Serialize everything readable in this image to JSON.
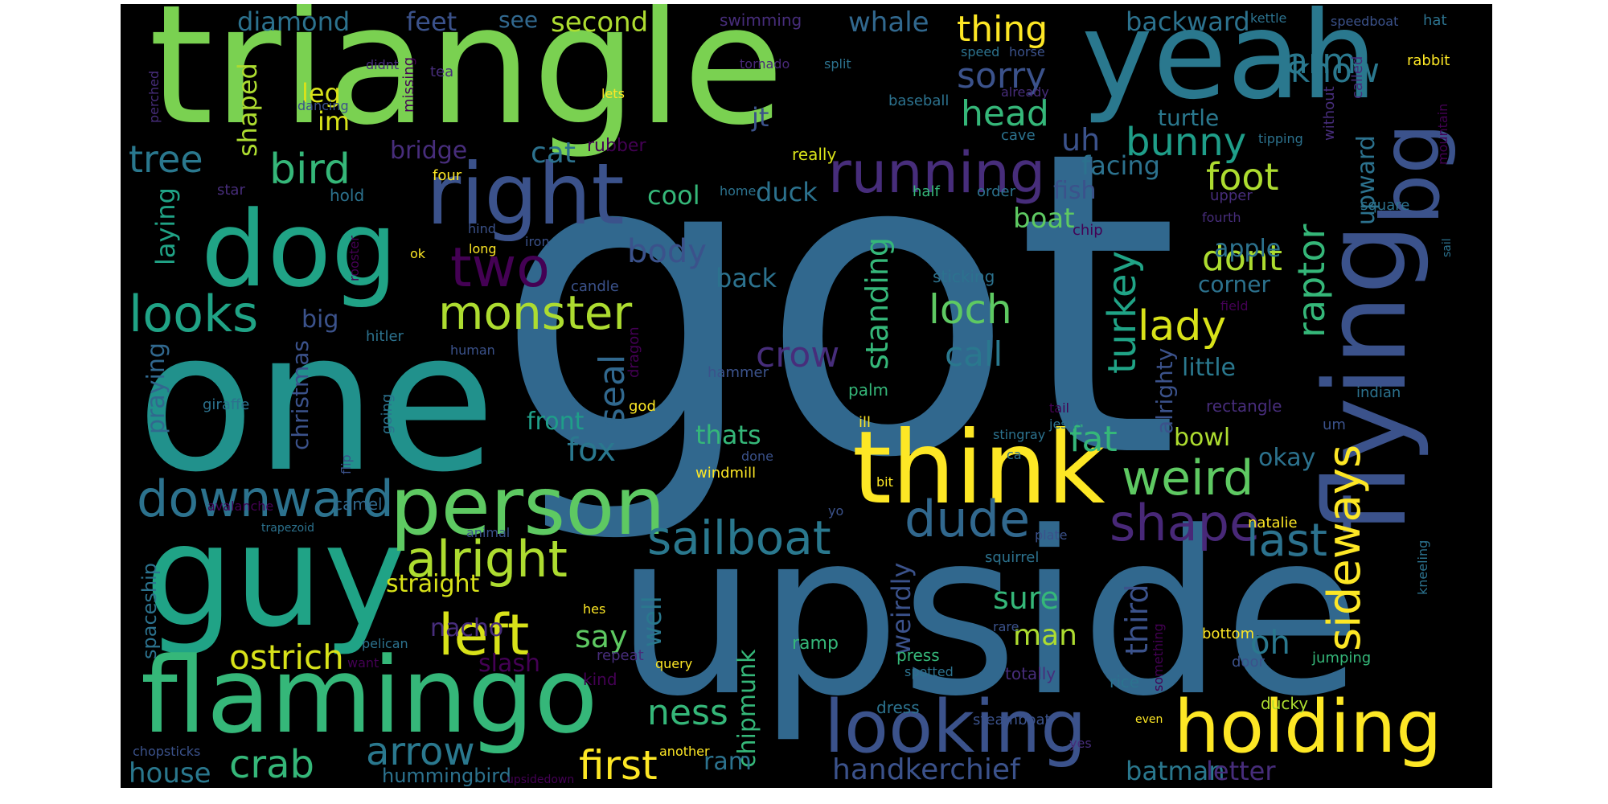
{
  "palette": {
    "background": "#000000",
    "dark_purple": "#440154",
    "purple": "#472d7b",
    "indigo": "#3b528b",
    "blue": "#2c728e",
    "teal": "#21918c",
    "green": "#28ae80",
    "light_green": "#5ec962",
    "lime": "#addc30",
    "yellow": "#fde725"
  },
  "words": [
    {
      "id": "got",
      "text": "got",
      "color": "#31688e"
    },
    {
      "id": "upside",
      "text": "upside",
      "color": "#31688e"
    },
    {
      "id": "one",
      "text": "one",
      "color": "#21918c"
    },
    {
      "id": "triangle",
      "text": "triangle",
      "color": "#7ad151"
    },
    {
      "id": "guy",
      "text": "guy",
      "color": "#20a386"
    },
    {
      "id": "flamingo",
      "text": "flamingo",
      "color": "#35b779"
    },
    {
      "id": "yeah",
      "text": "yeah",
      "color": "#2a788e"
    },
    {
      "id": "flying",
      "text": "flying",
      "color": "#3b528b"
    },
    {
      "id": "dog",
      "text": "dog",
      "color": "#20a386"
    },
    {
      "id": "think",
      "text": "think",
      "color": "#fde725"
    },
    {
      "id": "right",
      "text": "right",
      "color": "#3b528b"
    },
    {
      "id": "person",
      "text": "person",
      "color": "#5ec962"
    },
    {
      "id": "looking",
      "text": "looking",
      "color": "#3b528b"
    },
    {
      "id": "holding",
      "text": "holding",
      "color": "#fde725"
    },
    {
      "id": "big",
      "text": "bg",
      "color": "#3b528b"
    },
    {
      "id": "running",
      "text": "running",
      "color": "#472d7b"
    },
    {
      "id": "monster",
      "text": "monster",
      "color": "#addc30"
    },
    {
      "id": "downward",
      "text": "downward",
      "color": "#2c728e"
    },
    {
      "id": "looks",
      "text": "looks",
      "color": "#20a386"
    },
    {
      "id": "two",
      "text": "two",
      "color": "#440154"
    },
    {
      "id": "alright",
      "text": "alright",
      "color": "#addc30"
    },
    {
      "id": "left",
      "text": "left",
      "color": "#d8e219"
    },
    {
      "id": "sailboat",
      "text": "sailboat",
      "color": "#2a788e"
    },
    {
      "id": "dude",
      "text": "dude",
      "color": "#31688e"
    },
    {
      "id": "shape",
      "text": "shape",
      "color": "#482878"
    },
    {
      "id": "weird",
      "text": "weird",
      "color": "#5ec962"
    },
    {
      "id": "sideways",
      "text": "sideways",
      "color": "#fde725"
    },
    {
      "id": "last",
      "text": "last",
      "color": "#2c728e"
    },
    {
      "id": "bird",
      "text": "bird",
      "color": "#35b779"
    },
    {
      "id": "tree",
      "text": "tree",
      "color": "#2a788e"
    },
    {
      "id": "crab",
      "text": "crab",
      "color": "#35b779"
    },
    {
      "id": "arrow",
      "text": "arrow",
      "color": "#2a788e"
    },
    {
      "id": "first",
      "text": "first",
      "color": "#fde725"
    },
    {
      "id": "ness",
      "text": "ness",
      "color": "#35b779"
    },
    {
      "id": "ostrich",
      "text": "ostrich",
      "color": "#d8e219"
    },
    {
      "id": "loch",
      "text": "loch",
      "color": "#5ec962"
    },
    {
      "id": "lady",
      "text": "lady",
      "color": "#d8e219"
    },
    {
      "id": "bunny",
      "text": "bunny",
      "color": "#1f9e89"
    },
    {
      "id": "head",
      "text": "head",
      "color": "#35b779"
    },
    {
      "id": "sorry",
      "text": "sorry",
      "color": "#3b528b"
    },
    {
      "id": "thing",
      "text": "thing",
      "color": "#fde725"
    },
    {
      "id": "arm",
      "text": "arm",
      "color": "#2a788e"
    },
    {
      "id": "know",
      "text": "know",
      "color": "#2a788e"
    },
    {
      "id": "seal",
      "text": "seal",
      "color": "#31688e"
    },
    {
      "id": "turkey",
      "text": "turkey",
      "color": "#20a386"
    },
    {
      "id": "raptor",
      "text": "raptor",
      "color": "#35b779"
    },
    {
      "id": "foot",
      "text": "foot",
      "color": "#addc30"
    },
    {
      "id": "dont",
      "text": "dont",
      "color": "#addc30"
    },
    {
      "id": "fat",
      "text": "fat",
      "color": "#35b779"
    },
    {
      "id": "crow",
      "text": "crow",
      "color": "#472d7b"
    },
    {
      "id": "call",
      "text": "call",
      "color": "#2a788e"
    },
    {
      "id": "body",
      "text": "body",
      "color": "#3b528b"
    },
    {
      "id": "fox",
      "text": "fox",
      "color": "#2a788e"
    },
    {
      "id": "uh",
      "text": "uh",
      "color": "#3b528b"
    },
    {
      "id": "say",
      "text": "say",
      "color": "#5ec962"
    },
    {
      "id": "sure",
      "text": "sure",
      "color": "#35b779"
    },
    {
      "id": "man",
      "text": "man",
      "color": "#addc30"
    },
    {
      "id": "third",
      "text": "third",
      "color": "#3b528b"
    },
    {
      "id": "oh",
      "text": "oh",
      "color": "#2a788e"
    },
    {
      "id": "handkerchief",
      "text": "handkerchief",
      "color": "#3b528b"
    },
    {
      "id": "batman",
      "text": "batman",
      "color": "#2a788e"
    },
    {
      "id": "letter",
      "text": "letter",
      "color": "#472d7b"
    },
    {
      "id": "house",
      "text": "house",
      "color": "#2a788e"
    },
    {
      "id": "diamond",
      "text": "diamond",
      "color": "#2c728e"
    },
    {
      "id": "feet",
      "text": "feet",
      "color": "#3b528b"
    },
    {
      "id": "see",
      "text": "see",
      "color": "#31688e"
    },
    {
      "id": "second",
      "text": "second",
      "color": "#addc30"
    },
    {
      "id": "whale",
      "text": "whale",
      "color": "#31688e"
    },
    {
      "id": "backward",
      "text": "backward",
      "color": "#2c728e"
    },
    {
      "id": "leg",
      "text": "leg",
      "color": "#d8e219"
    },
    {
      "id": "im",
      "text": "im",
      "color": "#d8e219"
    },
    {
      "id": "jt",
      "text": "jt",
      "color": "#3b528b"
    },
    {
      "id": "turtle",
      "text": "turtle",
      "color": "#2a788e"
    },
    {
      "id": "facing",
      "text": "facing",
      "color": "#2c728e"
    },
    {
      "id": "cat",
      "text": "cat",
      "color": "#2c728e"
    },
    {
      "id": "bridge",
      "text": "bridge",
      "color": "#472d7b"
    },
    {
      "id": "cool",
      "text": "cool",
      "color": "#35b779"
    },
    {
      "id": "duck",
      "text": "duck",
      "color": "#2c728e"
    },
    {
      "id": "boat",
      "text": "boat",
      "color": "#5ec962"
    },
    {
      "id": "apple",
      "text": "apple",
      "color": "#2c728e"
    },
    {
      "id": "corner",
      "text": "corner",
      "color": "#2c728e"
    },
    {
      "id": "back",
      "text": "back",
      "color": "#2c728e"
    },
    {
      "id": "standing",
      "text": "standing",
      "color": "#35b779"
    },
    {
      "id": "fish",
      "text": "fish",
      "color": "#3b528b"
    },
    {
      "id": "upward",
      "text": "upward",
      "color": "#2c728e"
    },
    {
      "id": "shaped",
      "text": "shaped",
      "color": "#addc30"
    },
    {
      "id": "laying",
      "text": "laying",
      "color": "#20a386"
    },
    {
      "id": "praying",
      "text": "praying",
      "color": "#31688e"
    },
    {
      "id": "christmas",
      "text": "christmas",
      "color": "#3b528b"
    },
    {
      "id": "thats",
      "text": "thats",
      "color": "#35b779"
    },
    {
      "id": "front",
      "text": "front",
      "color": "#1f9e89"
    },
    {
      "id": "well",
      "text": "well",
      "color": "#2a788e"
    },
    {
      "id": "weirdly",
      "text": "weirdly",
      "color": "#3b528b"
    },
    {
      "id": "little",
      "text": "little",
      "color": "#2a788e"
    },
    {
      "id": "bowl",
      "text": "bowl",
      "color": "#addc30"
    },
    {
      "id": "okay",
      "text": "okay",
      "color": "#2c728e"
    },
    {
      "id": "alrighty",
      "text": "alrighty",
      "color": "#3b528b"
    },
    {
      "id": "straight",
      "text": "straight",
      "color": "#d8e219"
    },
    {
      "id": "nacho",
      "text": "nacho",
      "color": "#472d7b"
    },
    {
      "id": "slash",
      "text": "slash",
      "color": "#440154"
    },
    {
      "id": "chipmunk",
      "text": "chipmunk",
      "color": "#35b779"
    },
    {
      "id": "ram",
      "text": "ram",
      "color": "#2c728e"
    },
    {
      "id": "hummingbird",
      "text": "hummingbird",
      "color": "#2c728e"
    },
    {
      "id": "spaceship",
      "text": "spaceship",
      "color": "#2c728e"
    },
    {
      "id": "big2",
      "text": "big",
      "color": "#3b528b"
    },
    {
      "id": "swimming",
      "text": "swimming",
      "color": "#472d7b"
    },
    {
      "id": "kettle",
      "text": "kettle",
      "color": "#2c728e"
    },
    {
      "id": "speedboat",
      "text": "speedboat",
      "color": "#3b528b"
    },
    {
      "id": "hat",
      "text": "hat",
      "color": "#2c728e"
    },
    {
      "id": "tornado",
      "text": "tornado",
      "color": "#482878"
    },
    {
      "id": "split",
      "text": "split",
      "color": "#2c728e"
    },
    {
      "id": "speed",
      "text": "speed",
      "color": "#2c728e"
    },
    {
      "id": "horse",
      "text": "horse",
      "color": "#3b528b"
    },
    {
      "id": "without",
      "text": "without",
      "color": "#472d7b"
    },
    {
      "id": "called",
      "text": "called",
      "color": "#472d7b"
    },
    {
      "id": "rabbit",
      "text": "rabbit",
      "color": "#fde725"
    },
    {
      "id": "mountain",
      "text": "mountain",
      "color": "#440154"
    },
    {
      "id": "already",
      "text": "already",
      "color": "#472d7b"
    },
    {
      "id": "baseball",
      "text": "baseball",
      "color": "#2c728e"
    },
    {
      "id": "didnt",
      "text": "didnt",
      "color": "#472d7b"
    },
    {
      "id": "tea",
      "text": "tea",
      "color": "#472d7b"
    },
    {
      "id": "missing",
      "text": "missing",
      "color": "#440154"
    },
    {
      "id": "lets",
      "text": "lets",
      "color": "#fde725"
    },
    {
      "id": "perched",
      "text": "perched",
      "color": "#472d7b"
    },
    {
      "id": "tipping",
      "text": "tipping",
      "color": "#2c728e"
    },
    {
      "id": "cave",
      "text": "cave",
      "color": "#2c728e"
    },
    {
      "id": "rubber",
      "text": "rubber",
      "color": "#440154"
    },
    {
      "id": "really",
      "text": "really",
      "color": "#d8e219"
    },
    {
      "id": "star",
      "text": "star",
      "color": "#472d7b"
    },
    {
      "id": "dancing",
      "text": "dancing",
      "color": "#3b528b"
    },
    {
      "id": "hold",
      "text": "hold",
      "color": "#2c728e"
    },
    {
      "id": "four",
      "text": "four",
      "color": "#fde725"
    },
    {
      "id": "home",
      "text": "home",
      "color": "#2c728e"
    },
    {
      "id": "half",
      "text": "half",
      "color": "#35b779"
    },
    {
      "id": "order",
      "text": "order",
      "color": "#2c728e"
    },
    {
      "id": "upper",
      "text": "upper",
      "color": "#472d7b"
    },
    {
      "id": "square",
      "text": "square",
      "color": "#2c728e"
    },
    {
      "id": "fourth",
      "text": "fourth",
      "color": "#472d7b"
    },
    {
      "id": "chip",
      "text": "chip",
      "color": "#440154"
    },
    {
      "id": "sail",
      "text": "sail",
      "color": "#2c728e"
    },
    {
      "id": "hind",
      "text": "hind",
      "color": "#3b528b"
    },
    {
      "id": "ok",
      "text": "ok",
      "color": "#fde725"
    },
    {
      "id": "iron",
      "text": "iron",
      "color": "#3b528b"
    },
    {
      "id": "long",
      "text": "long",
      "color": "#fde725"
    },
    {
      "id": "rooster",
      "text": "rooster",
      "color": "#440154"
    },
    {
      "id": "candle",
      "text": "candle",
      "color": "#3b528b"
    },
    {
      "id": "sticking",
      "text": "sticking",
      "color": "#2c728e"
    },
    {
      "id": "field",
      "text": "field",
      "color": "#440154"
    },
    {
      "id": "dragon",
      "text": "dragon",
      "color": "#440154"
    },
    {
      "id": "hitler",
      "text": "hitler",
      "color": "#2c728e"
    },
    {
      "id": "human",
      "text": "human",
      "color": "#3b528b"
    },
    {
      "id": "hammer",
      "text": "hammer",
      "color": "#3b528b"
    },
    {
      "id": "god",
      "text": "god",
      "color": "#fde725"
    },
    {
      "id": "palm",
      "text": "palm",
      "color": "#35b779"
    },
    {
      "id": "rectangle",
      "text": "rectangle",
      "color": "#472d7b"
    },
    {
      "id": "indian",
      "text": "indian",
      "color": "#2c728e"
    },
    {
      "id": "giraffe",
      "text": "giraffe",
      "color": "#2c728e"
    },
    {
      "id": "going",
      "text": "going",
      "color": "#2c728e"
    },
    {
      "id": "tail",
      "text": "tail",
      "color": "#440154"
    },
    {
      "id": "um",
      "text": "um",
      "color": "#3b528b"
    },
    {
      "id": "ill",
      "text": "ill",
      "color": "#fde725"
    },
    {
      "id": "stingray",
      "text": "stingray",
      "color": "#2c728e"
    },
    {
      "id": "jesus",
      "text": "jesus",
      "color": "#2c728e"
    },
    {
      "id": "flip",
      "text": "flip",
      "color": "#3b528b"
    },
    {
      "id": "done",
      "text": "done",
      "color": "#3b528b"
    },
    {
      "id": "ca",
      "text": "ca",
      "color": "#2c728e"
    },
    {
      "id": "avalanche",
      "text": "avalanche",
      "color": "#440154"
    },
    {
      "id": "camel",
      "text": "camel",
      "color": "#31688e"
    },
    {
      "id": "bit",
      "text": "bit",
      "color": "#fde725"
    },
    {
      "id": "windmill",
      "text": "windmill",
      "color": "#fde725"
    },
    {
      "id": "natalie",
      "text": "natalie",
      "color": "#fde725"
    },
    {
      "id": "kneeling",
      "text": "kneeling",
      "color": "#2c728e"
    },
    {
      "id": "yo",
      "text": "yo",
      "color": "#3b528b"
    },
    {
      "id": "trapezoid",
      "text": "trapezoid",
      "color": "#2c728e"
    },
    {
      "id": "animal",
      "text": "animal",
      "color": "#3b528b"
    },
    {
      "id": "plate",
      "text": "plate",
      "color": "#3b528b"
    },
    {
      "id": "squirrel",
      "text": "squirrel",
      "color": "#2c728e"
    },
    {
      "id": "hes",
      "text": "hes",
      "color": "#fde725"
    },
    {
      "id": "rare",
      "text": "rare",
      "color": "#3b528b"
    },
    {
      "id": "pelican",
      "text": "pelican",
      "color": "#2c728e"
    },
    {
      "id": "want",
      "text": "want",
      "color": "#440154"
    },
    {
      "id": "repeat",
      "text": "repeat",
      "color": "#472d7b"
    },
    {
      "id": "something",
      "text": "something",
      "color": "#440154"
    },
    {
      "id": "bottom",
      "text": "bottom",
      "color": "#fde725"
    },
    {
      "id": "jumping",
      "text": "jumping",
      "color": "#35b779"
    },
    {
      "id": "ramp",
      "text": "ramp",
      "color": "#35b779"
    },
    {
      "id": "press",
      "text": "press",
      "color": "#35b779"
    },
    {
      "id": "spotted",
      "text": "spotted",
      "color": "#2c728e"
    },
    {
      "id": "totally",
      "text": "totally",
      "color": "#472d7b"
    },
    {
      "id": "door",
      "text": "door",
      "color": "#3b528b"
    },
    {
      "id": "query",
      "text": "query",
      "color": "#fde725"
    },
    {
      "id": "kind",
      "text": "kind",
      "color": "#440154"
    },
    {
      "id": "rice",
      "text": "rice",
      "color": "#2c728e"
    },
    {
      "id": "dress",
      "text": "dress",
      "color": "#2c728e"
    },
    {
      "id": "chopsticks",
      "text": "chopsticks",
      "color": "#3b528b"
    },
    {
      "id": "another",
      "text": "another",
      "color": "#fde725"
    },
    {
      "id": "steamboat",
      "text": "steamboat",
      "color": "#3b528b"
    },
    {
      "id": "even",
      "text": "even",
      "color": "#fde725"
    },
    {
      "id": "ducky",
      "text": "ducky",
      "color": "#addc30"
    },
    {
      "id": "yes",
      "text": "yes",
      "color": "#472d7b"
    },
    {
      "id": "upsidedown",
      "text": "upsidedown",
      "color": "#440154"
    }
  ]
}
